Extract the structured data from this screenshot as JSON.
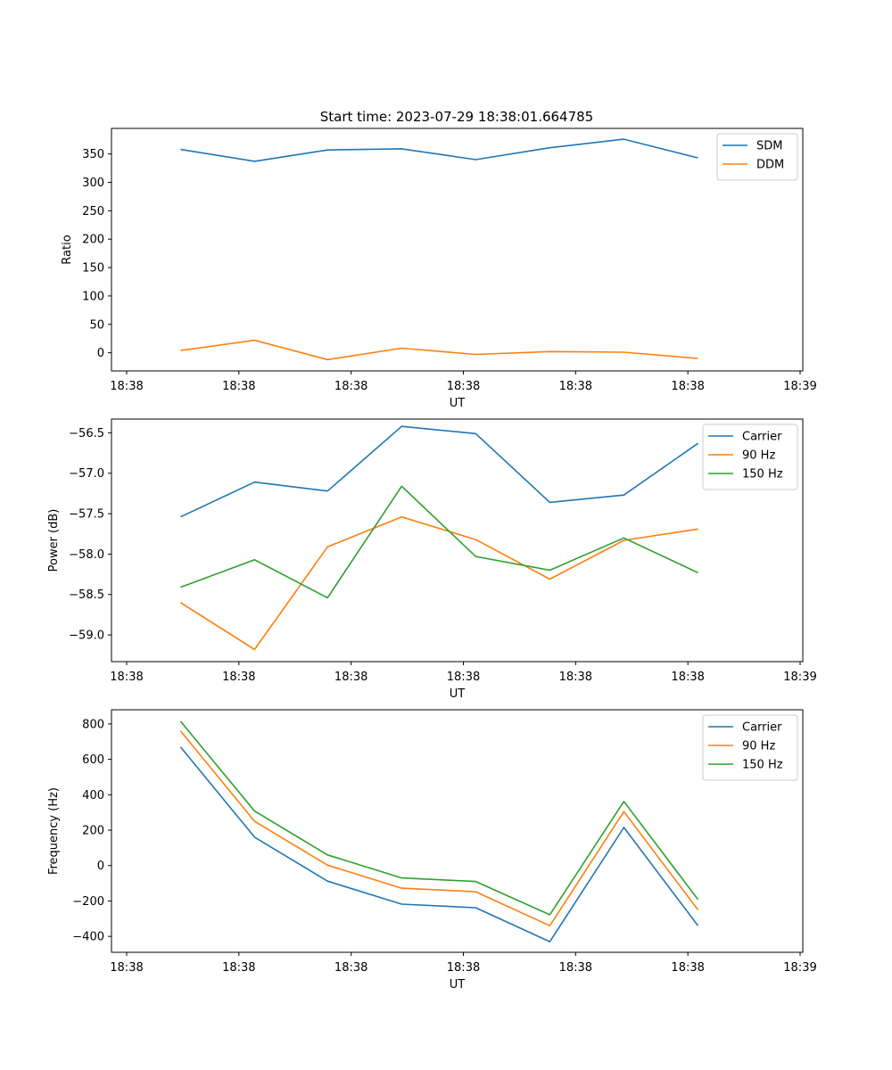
{
  "title": "Start time: 2023-07-29 18:38:01.664785",
  "colors": {
    "blue": "#1f77b4",
    "orange": "#ff7f0e",
    "green": "#2ca02c"
  },
  "chart_data": [
    {
      "type": "line",
      "name": "ratio",
      "xlabel": "UT",
      "ylabel": "Ratio",
      "xlim": [
        0,
        6
      ],
      "ylim": [
        -32,
        395
      ],
      "yticks": [
        0,
        50,
        100,
        150,
        200,
        250,
        300,
        350
      ],
      "ytick_labels": [
        "0",
        "50",
        "100",
        "150",
        "200",
        "250",
        "300",
        "350"
      ],
      "xticks": [
        0,
        1,
        2,
        3,
        4,
        5,
        6
      ],
      "xtick_labels": [
        "18:38",
        "18:38",
        "18:38",
        "18:38",
        "18:38",
        "18:38",
        "18:39"
      ],
      "x": [
        0.48,
        1.14,
        1.79,
        2.45,
        3.11,
        3.77,
        4.43,
        5.09
      ],
      "legend_loc": "top-right",
      "series": [
        {
          "name": "SDM",
          "color": "#1f77b4",
          "values": [
            358,
            337,
            357,
            359,
            340,
            361,
            376,
            343
          ]
        },
        {
          "name": "DDM",
          "color": "#ff7f0e",
          "values": [
            4,
            22,
            -12,
            8,
            -3,
            2,
            1,
            -10
          ]
        }
      ]
    },
    {
      "type": "line",
      "name": "power",
      "xlabel": "UT",
      "ylabel": "Power (dB)",
      "xlim": [
        0,
        6
      ],
      "ylim": [
        -59.33,
        -56.33
      ],
      "yticks": [
        -59.0,
        -58.5,
        -58.0,
        -57.5,
        -57.0,
        -56.5
      ],
      "ytick_labels": [
        "−59.0",
        "−58.5",
        "−58.0",
        "−57.5",
        "−57.0",
        "−56.5"
      ],
      "xticks": [
        0,
        1,
        2,
        3,
        4,
        5,
        6
      ],
      "xtick_labels": [
        "18:38",
        "18:38",
        "18:38",
        "18:38",
        "18:38",
        "18:38",
        "18:39"
      ],
      "x": [
        0.48,
        1.14,
        1.79,
        2.45,
        3.11,
        3.77,
        4.43,
        5.09
      ],
      "legend_loc": "top-right",
      "series": [
        {
          "name": "Carrier",
          "color": "#1f77b4",
          "values": [
            -57.54,
            -57.11,
            -57.22,
            -56.42,
            -56.51,
            -57.36,
            -57.27,
            -56.63
          ]
        },
        {
          "name": "90 Hz",
          "color": "#ff7f0e",
          "values": [
            -58.6,
            -59.18,
            -57.91,
            -57.54,
            -57.82,
            -58.31,
            -57.83,
            -57.69
          ]
        },
        {
          "name": "150 Hz",
          "color": "#2ca02c",
          "values": [
            -58.41,
            -58.07,
            -58.54,
            -57.16,
            -58.03,
            -58.2,
            -57.8,
            -58.23
          ]
        }
      ]
    },
    {
      "type": "line",
      "name": "frequency",
      "xlabel": "UT",
      "ylabel": "Frequency (Hz)",
      "xlim": [
        0,
        6
      ],
      "ylim": [
        -490,
        880
      ],
      "yticks": [
        -400,
        -200,
        0,
        200,
        400,
        600,
        800
      ],
      "ytick_labels": [
        "−400",
        "−200",
        "0",
        "200",
        "400",
        "600",
        "800"
      ],
      "xticks": [
        0,
        1,
        2,
        3,
        4,
        5,
        6
      ],
      "xtick_labels": [
        "18:38",
        "18:38",
        "18:38",
        "18:38",
        "18:38",
        "18:38",
        "18:39"
      ],
      "x": [
        0.48,
        1.14,
        1.79,
        2.45,
        3.11,
        3.77,
        4.43,
        5.09
      ],
      "legend_loc": "top-right",
      "series": [
        {
          "name": "Carrier",
          "color": "#1f77b4",
          "values": [
            670,
            160,
            -88,
            -218,
            -238,
            -430,
            215,
            -340
          ]
        },
        {
          "name": "90 Hz",
          "color": "#ff7f0e",
          "values": [
            760,
            250,
            2,
            -128,
            -148,
            -340,
            305,
            -250
          ]
        },
        {
          "name": "150 Hz",
          "color": "#2ca02c",
          "values": [
            815,
            308,
            60,
            -70,
            -90,
            -278,
            362,
            -192
          ]
        }
      ]
    }
  ]
}
